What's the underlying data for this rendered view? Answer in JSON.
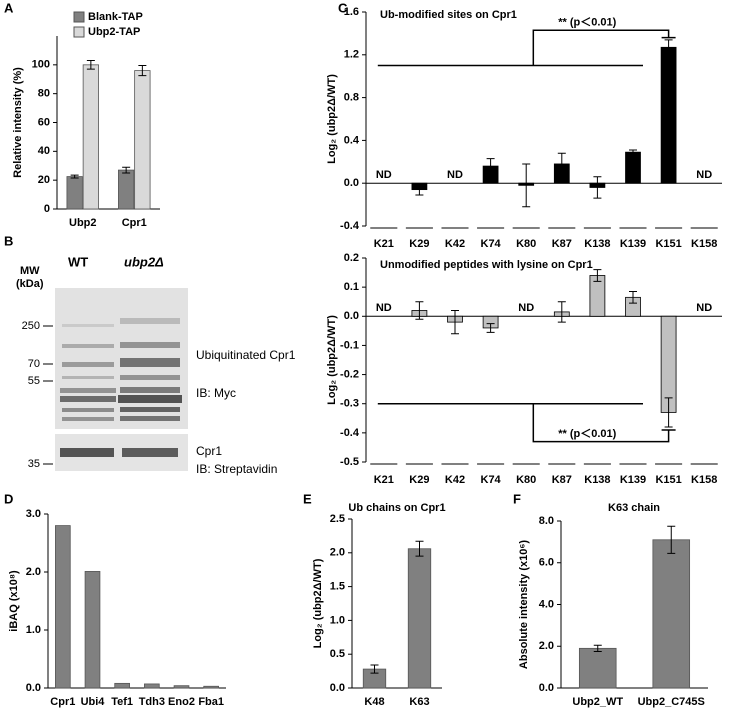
{
  "panel_labels": [
    "A",
    "B",
    "C",
    "D",
    "E",
    "F"
  ],
  "blot": {
    "mw_label": [
      "MW",
      "(kDa)"
    ],
    "lanes": [
      "WT",
      "ubp2Δ"
    ],
    "markers": [
      "250",
      "70",
      "55",
      "35"
    ],
    "right_labels": [
      "Ubiquitinated Cpr1",
      "IB: Myc",
      "Cpr1",
      "IB: Streptavidin"
    ]
  },
  "chart_data": [
    {
      "type": "bar",
      "y_label": "Relative intensity (%)",
      "categories": [
        "Ubp2",
        "Cpr1"
      ],
      "series": [
        {
          "name": "Blank-TAP",
          "color": "#808080",
          "values": [
            22.5,
            27
          ],
          "errors": [
            1,
            2
          ]
        },
        {
          "name": "Ubp2-TAP",
          "color": "#d9d9d9",
          "values": [
            100,
            96
          ],
          "errors": [
            3,
            3.5
          ]
        }
      ],
      "ylim": [
        0,
        120
      ],
      "yticks": [
        0,
        20,
        40,
        60,
        80,
        100
      ]
    },
    {
      "type": "bar",
      "title": "Ub-modified sites on Cpr1",
      "y_label": "Log₂ (ubp2Δ/WT)",
      "annotation": "** (p＜0.01)",
      "categories": [
        "K21",
        "K29",
        "K42",
        "K74",
        "K80",
        "K87",
        "K138",
        "K139",
        "K151",
        "K158"
      ],
      "values": [
        null,
        -0.06,
        null,
        0.16,
        -0.02,
        0.18,
        -0.04,
        0.29,
        1.27,
        null
      ],
      "errors": [
        null,
        0.05,
        null,
        0.07,
        0.2,
        0.1,
        0.1,
        0.02,
        0.07,
        null
      ],
      "value_labels": [
        "ND",
        null,
        "ND",
        null,
        null,
        null,
        null,
        null,
        null,
        "ND"
      ],
      "color": "#000000",
      "ylim": [
        -0.4,
        1.6
      ],
      "yticks": [
        -0.4,
        {
          "value": 0,
          "label": "0.0"
        },
        0.4,
        0.8,
        1.2,
        1.6
      ]
    },
    {
      "type": "bar",
      "title": "Unmodified peptides with lysine  on Cpr1",
      "y_label": "Log₂ (ubp2Δ/WT)",
      "annotation": "** (p＜0.01)",
      "categories": [
        "K21",
        "K29",
        "K42",
        "K74",
        "K80",
        "K87",
        "K138",
        "K139",
        "K151",
        "K158"
      ],
      "values": [
        null,
        0.02,
        -0.02,
        -0.04,
        null,
        0.015,
        0.14,
        0.065,
        -0.33,
        null
      ],
      "errors": [
        null,
        0.03,
        0.04,
        0.015,
        null,
        0.035,
        0.02,
        0.02,
        0.05,
        null
      ],
      "value_labels": [
        "ND",
        null,
        null,
        null,
        "ND",
        null,
        null,
        null,
        null,
        "ND"
      ],
      "color": "#c0c0c0",
      "ylim": [
        -0.5,
        0.2
      ],
      "yticks": [
        -0.5,
        -0.4,
        -0.3,
        -0.2,
        -0.1,
        {
          "value": 0,
          "label": "0.0"
        },
        0.1,
        0.2
      ]
    },
    {
      "type": "bar",
      "y_label": "iBAQ (x10⁸)",
      "categories": [
        "Cpr1",
        "Ubi4",
        "Tef1",
        "Tdh3",
        "Eno2",
        "Fba1"
      ],
      "values": [
        2.8,
        2.01,
        0.08,
        0.07,
        0.04,
        0.03
      ],
      "color": "#808080",
      "ylim": [
        0,
        3
      ],
      "yticks": [
        {
          "value": 0,
          "label": "0.0"
        },
        {
          "value": 1,
          "label": "1.0"
        },
        {
          "value": 2,
          "label": "2.0"
        },
        {
          "value": 3,
          "label": "3.0"
        }
      ]
    },
    {
      "type": "bar",
      "title": "Ub chains on Cpr1",
      "y_label": "Log₂ (ubp2Δ/WT)",
      "categories": [
        "K48",
        "K63"
      ],
      "values": [
        0.28,
        2.06
      ],
      "errors": [
        0.06,
        0.11
      ],
      "color": "#808080",
      "ylim": [
        0,
        2.5
      ],
      "yticks": [
        {
          "value": 0,
          "label": "0.0"
        },
        0.5,
        {
          "value": 1,
          "label": "1.0"
        },
        1.5,
        {
          "value": 2,
          "label": "2.0"
        },
        2.5
      ]
    },
    {
      "type": "bar",
      "title": "K63 chain",
      "y_label": "Absolute intensity (x10⁶)",
      "categories": [
        "Ubp2_WT",
        "Ubp2_C745S"
      ],
      "values": [
        1.9,
        7.1
      ],
      "errors": [
        0.15,
        0.65
      ],
      "color": "#808080",
      "ylim": [
        0,
        8
      ],
      "yticks": [
        {
          "value": 0,
          "label": "0.0"
        },
        {
          "value": 2,
          "label": "2.0"
        },
        {
          "value": 4,
          "label": "4.0"
        },
        {
          "value": 6,
          "label": "6.0"
        },
        {
          "value": 8,
          "label": "8.0"
        }
      ]
    }
  ]
}
